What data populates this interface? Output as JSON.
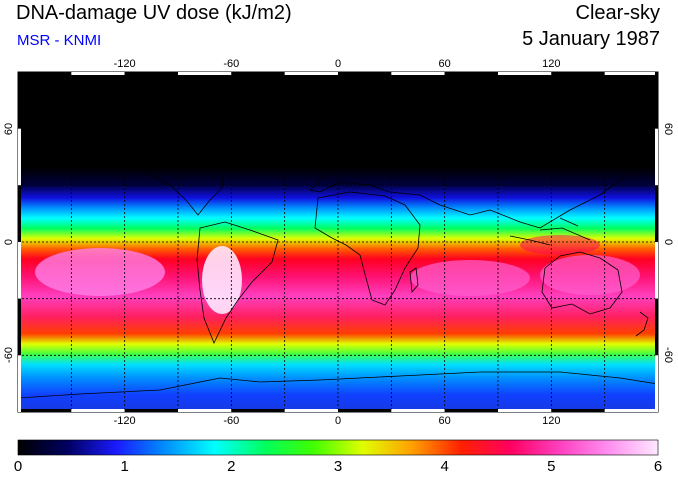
{
  "header": {
    "title": "DNA-damage UV dose (kJ/m2)",
    "source": "MSR - KNMI",
    "sky": "Clear-sky",
    "date": "5 January 1987"
  },
  "map": {
    "lon_ticks": [
      "-120",
      "-60",
      "0",
      "60",
      "120"
    ],
    "lat_ticks": [
      "60",
      "0",
      "-60"
    ],
    "grid_lon_values": [
      -150,
      -120,
      -90,
      -60,
      -30,
      0,
      30,
      60,
      90,
      120,
      150
    ],
    "grid_lat_values": [
      60,
      30,
      0,
      -30,
      -60
    ]
  },
  "colorbar": {
    "labels": [
      "0",
      "1",
      "2",
      "3",
      "4",
      "5",
      "6"
    ],
    "min": 0,
    "max": 6,
    "stops": [
      "#000000",
      "#000060",
      "#1a1aff",
      "#0090ff",
      "#00ffff",
      "#00ff60",
      "#40ff00",
      "#e0ff00",
      "#ffa000",
      "#ff2000",
      "#ff0060",
      "#ff40c0",
      "#ff90f0",
      "#ffe8ff"
    ]
  },
  "colors": {
    "title": "#000000",
    "source": "#0000ff"
  }
}
